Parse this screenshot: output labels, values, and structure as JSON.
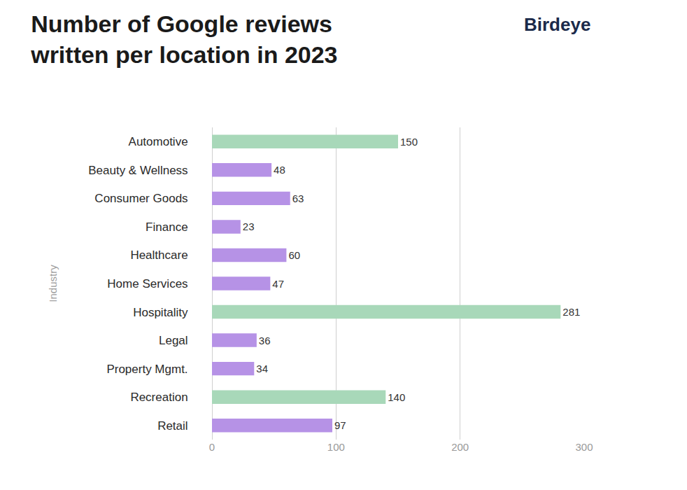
{
  "chart_data": {
    "type": "bar",
    "orientation": "horizontal",
    "title": "Number of Google reviews\nwritten per location in 2023",
    "annotations": [
      "Birdeye"
    ],
    "ylabel": "Industry",
    "categories": [
      "Automotive",
      "Beauty & Wellness",
      "Consumer Goods",
      "Finance",
      "Healthcare",
      "Home Services",
      "Hospitality",
      "Legal",
      "Property Mgmt.",
      "Recreation",
      "Retail"
    ],
    "values": [
      150,
      48,
      63,
      23,
      60,
      47,
      281,
      36,
      34,
      140,
      97
    ],
    "colors": [
      "#a8d8b9",
      "#b692e6",
      "#b692e6",
      "#b692e6",
      "#b692e6",
      "#b692e6",
      "#a8d8b9",
      "#b692e6",
      "#b692e6",
      "#a8d8b9",
      "#b692e6"
    ],
    "xlim": [
      0,
      300
    ],
    "xticks": [
      0,
      100,
      200,
      300
    ],
    "grid": true,
    "data_labels": true
  }
}
